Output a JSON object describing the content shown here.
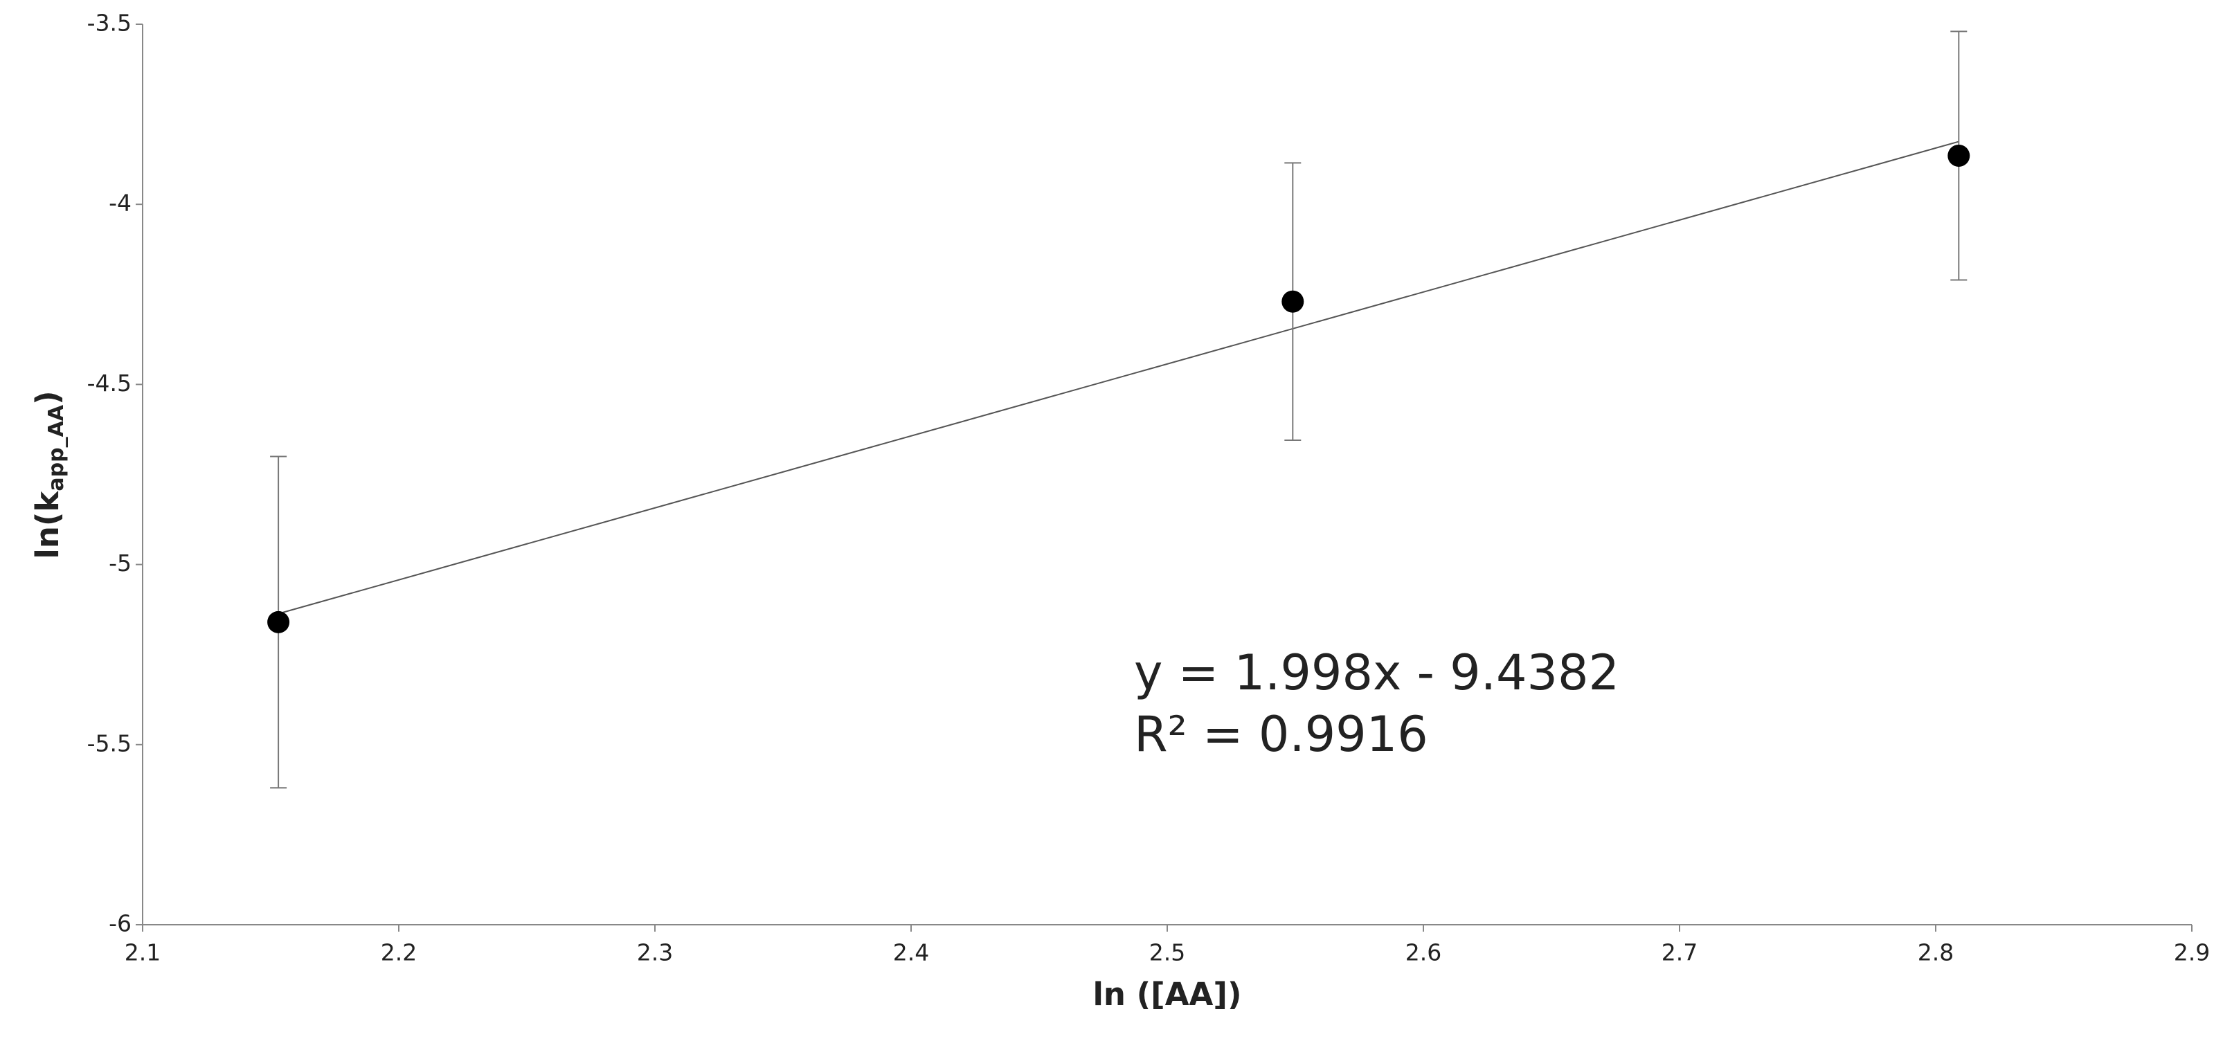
{
  "chart_data": {
    "type": "scatter",
    "xlabel": "ln ([AA])",
    "ylabel": [
      "ln(k",
      "app_AA",
      ")"
    ],
    "x": [
      2.153,
      2.549,
      2.809
    ],
    "series": [
      {
        "values": [
          -5.16,
          -4.27,
          -3.865
        ],
        "errors": [
          0.46,
          0.385,
          0.345
        ],
        "color": "#000000"
      }
    ],
    "trendline": {
      "slope": 1.998,
      "intercept": -9.4382,
      "color": "#555555"
    },
    "annotations": [
      "y = 1.998x - 9.4382",
      "R² = 0.9916"
    ],
    "xlim": [
      2.1,
      2.9
    ],
    "xticks": [
      2.1,
      2.2,
      2.3,
      2.4,
      2.5,
      2.6,
      2.7,
      2.8,
      2.9
    ],
    "ylim": [
      -6,
      -3.5
    ],
    "yticks": [
      -6,
      -5.5,
      -5,
      -4.5,
      -4,
      -3.5
    ],
    "grid": false
  }
}
